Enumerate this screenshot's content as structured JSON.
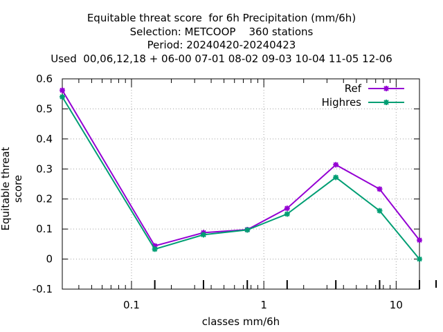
{
  "chart_data": {
    "type": "line",
    "title_lines": [
      "Equitable threat score  for 6h Precipitation (mm/6h)",
      "Selection: METCOOP    360 stations",
      "Period: 20240420-20240423",
      "Used  00,06,12,18 + 06-00 07-01 08-02 09-03 10-04 11-05 12-06"
    ],
    "xlabel": "classes mm/6h",
    "ylabel": "Equitable threat score",
    "xscale": "log",
    "xlim": [
      0.03,
      15
    ],
    "ylim": [
      -0.1,
      0.6
    ],
    "yticks": [
      -0.1,
      0,
      0.1,
      0.2,
      0.3,
      0.4,
      0.5,
      0.6
    ],
    "ytick_labels": [
      "-0.1",
      "0",
      "0.1",
      "0.2",
      "0.3",
      "0.4",
      "0.5",
      "0.6"
    ],
    "xticks": [
      0.1,
      1,
      10
    ],
    "xtick_labels": [
      "0.1",
      "1",
      "10"
    ],
    "grid": true,
    "legend_position": "top-right",
    "x": [
      0.03,
      0.15,
      0.35,
      0.75,
      1.5,
      3.5,
      7.5,
      15
    ],
    "series": [
      {
        "name": "Ref",
        "color": "#9400d3",
        "values": [
          0.562,
          0.044,
          0.088,
          0.098,
          0.169,
          0.314,
          0.233,
          0.063
        ]
      },
      {
        "name": "Highres",
        "color": "#009e73",
        "values": [
          0.54,
          0.033,
          0.081,
          0.097,
          0.15,
          0.272,
          0.161,
          0.0
        ]
      }
    ]
  }
}
